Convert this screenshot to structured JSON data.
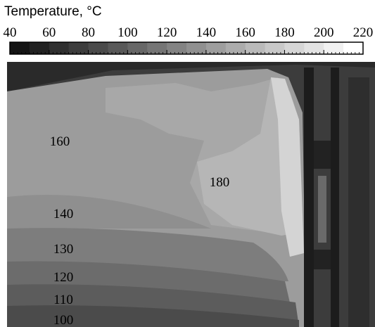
{
  "colorbar": {
    "title": "Temperature, °C",
    "xlim": [
      40,
      220
    ],
    "xticks": [
      40,
      60,
      80,
      100,
      120,
      140,
      160,
      180,
      200,
      220
    ],
    "low_color": "#141414",
    "high_color": "#ffffff"
  },
  "image": {
    "labels": [
      160,
      180,
      140,
      130,
      120,
      110,
      100
    ]
  }
}
